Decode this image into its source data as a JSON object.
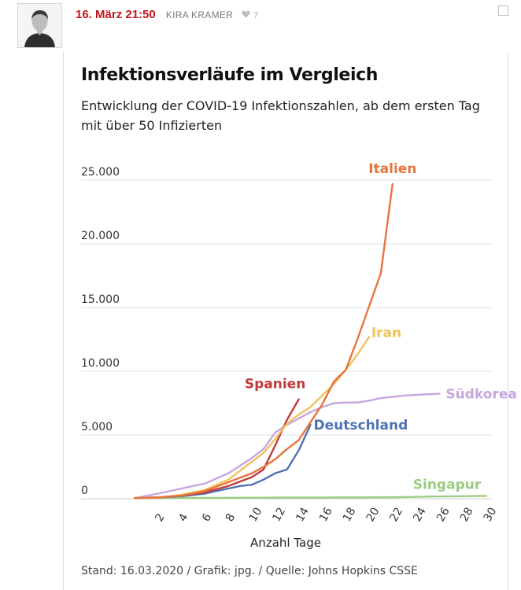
{
  "post": {
    "date": "16. März 21:50",
    "author": "KIRA KRAMER",
    "like_icon": "heart-icon",
    "like_count": "7"
  },
  "colors": {
    "Italien": "#e8743b",
    "Iran": "#f0c25c",
    "Spanien": "#c23b3b",
    "Südkorea": "#c7a6e0",
    "Deutschland": "#4f73b3",
    "Singapur": "#9ccc83",
    "date_red": "#c4161c"
  },
  "chart_data": {
    "type": "line",
    "title": "Infektionsverläufe im Vergleich",
    "subtitle": "Entwicklung der COVID-19 Infektionszahlen, ab dem ersten Tag mit über 50 Infizierten",
    "xlabel": "Anzahl Tage",
    "ylabel": "",
    "xlim": [
      0,
      30
    ],
    "ylim": [
      0,
      25000
    ],
    "x_ticks": [
      2,
      4,
      6,
      8,
      10,
      12,
      14,
      16,
      18,
      20,
      22,
      24,
      26,
      28,
      30
    ],
    "y_ticks": [
      0,
      5000,
      10000,
      15000,
      20000,
      25000
    ],
    "y_tick_labels": [
      "0",
      "5.000",
      "10.000",
      "15.000",
      "20.000",
      "25.000"
    ],
    "grid": "horizontal",
    "legend": "labels at line ends",
    "source": "Stand: 16.03.2020 / Grafik: jpg. / Quelle: Johns Hopkins CSSE",
    "series": [
      {
        "name": "Italien",
        "x": [
          0,
          2,
          4,
          6,
          8,
          10,
          11,
          12,
          13,
          14,
          15,
          16,
          17,
          18,
          19,
          20,
          21,
          22
        ],
        "y": [
          50,
          100,
          250,
          600,
          1300,
          2000,
          2500,
          3100,
          3900,
          4600,
          6000,
          7400,
          9200,
          10100,
          12500,
          15100,
          17700,
          24700
        ]
      },
      {
        "name": "Iran",
        "x": [
          0,
          2,
          4,
          6,
          8,
          10,
          11,
          12,
          13,
          14,
          15,
          16,
          17,
          18,
          19,
          20
        ],
        "y": [
          50,
          100,
          300,
          700,
          1500,
          2900,
          3600,
          4700,
          5900,
          6600,
          7200,
          8100,
          9000,
          10100,
          11300,
          12700
        ]
      },
      {
        "name": "Spanien",
        "x": [
          0,
          2,
          4,
          6,
          8,
          10,
          11,
          12,
          13,
          14
        ],
        "y": [
          50,
          120,
          250,
          500,
          1000,
          1700,
          2300,
          4200,
          6200,
          7800
        ]
      },
      {
        "name": "Südkorea",
        "x": [
          0,
          2,
          4,
          6,
          8,
          10,
          11,
          12,
          13,
          14,
          15,
          16,
          17,
          18,
          19,
          20,
          21,
          22,
          23,
          24,
          25,
          26
        ],
        "y": [
          50,
          400,
          800,
          1200,
          2000,
          3200,
          3900,
          5200,
          5800,
          6300,
          6800,
          7200,
          7500,
          7550,
          7550,
          7700,
          7900,
          8000,
          8100,
          8150,
          8200,
          8250
        ]
      },
      {
        "name": "Deutschland",
        "x": [
          0,
          2,
          4,
          6,
          8,
          9,
          10,
          11,
          12,
          13,
          14,
          15
        ],
        "y": [
          50,
          100,
          200,
          400,
          800,
          1000,
          1100,
          1500,
          2000,
          2300,
          3800,
          5800
        ]
      },
      {
        "name": "Singapur",
        "x": [
          0,
          5,
          10,
          15,
          20,
          22,
          23,
          24,
          25,
          26,
          27,
          28,
          29,
          30
        ],
        "y": [
          50,
          60,
          80,
          100,
          110,
          120,
          130,
          150,
          170,
          180,
          190,
          200,
          210,
          220
        ]
      }
    ]
  }
}
